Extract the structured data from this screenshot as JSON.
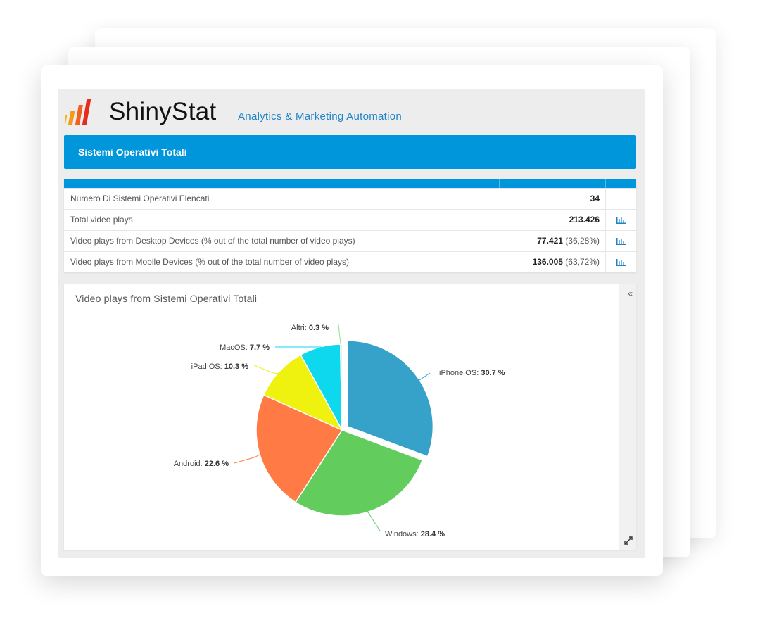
{
  "header": {
    "brand": "ShinyStat",
    "tagline": "Analytics & Marketing Automation",
    "logo_icon": "bar-chart-logo"
  },
  "banner": {
    "title": "Sistemi Operativi Totali"
  },
  "summary_table": {
    "rows": [
      {
        "label": "Numero Di Sistemi Operativi Elencati",
        "value": "34",
        "pct": "",
        "has_chart_icon": false
      },
      {
        "label": "Total video plays",
        "value": "213.426",
        "pct": "",
        "has_chart_icon": true
      },
      {
        "label": "Video plays from Desktop Devices (% out of the total number of video plays)",
        "value": "77.421",
        "pct": "(36,28%)",
        "has_chart_icon": true
      },
      {
        "label": "Video plays from Mobile Devices (% out of the total number of video plays)",
        "value": "136.005",
        "pct": "(63,72%)",
        "has_chart_icon": true
      }
    ],
    "icon": "bar-chart-icon"
  },
  "chart_panel": {
    "collapse_label": "«",
    "expand_icon": "expand-icon"
  },
  "chart_data": {
    "type": "pie",
    "title": "Video plays from Sistemi Operativi Totali",
    "slices": [
      {
        "name": "iPhone OS",
        "value": 30.7,
        "label": "30.7 %",
        "color": "#36a2c9",
        "exploded": true
      },
      {
        "name": "Windows",
        "value": 28.4,
        "label": "28.4 %",
        "color": "#62cd5c"
      },
      {
        "name": "Android",
        "value": 22.6,
        "label": "22.6 %",
        "color": "#ff7a45"
      },
      {
        "name": "iPad OS",
        "value": 10.3,
        "label": "10.3 %",
        "color": "#eef20e"
      },
      {
        "name": "MacOS",
        "value": 7.7,
        "label": "7.7 %",
        "color": "#0dd8ed"
      },
      {
        "name": "Altri",
        "value": 0.3,
        "label": "0.3 %",
        "color": "#8ee58a"
      }
    ]
  }
}
